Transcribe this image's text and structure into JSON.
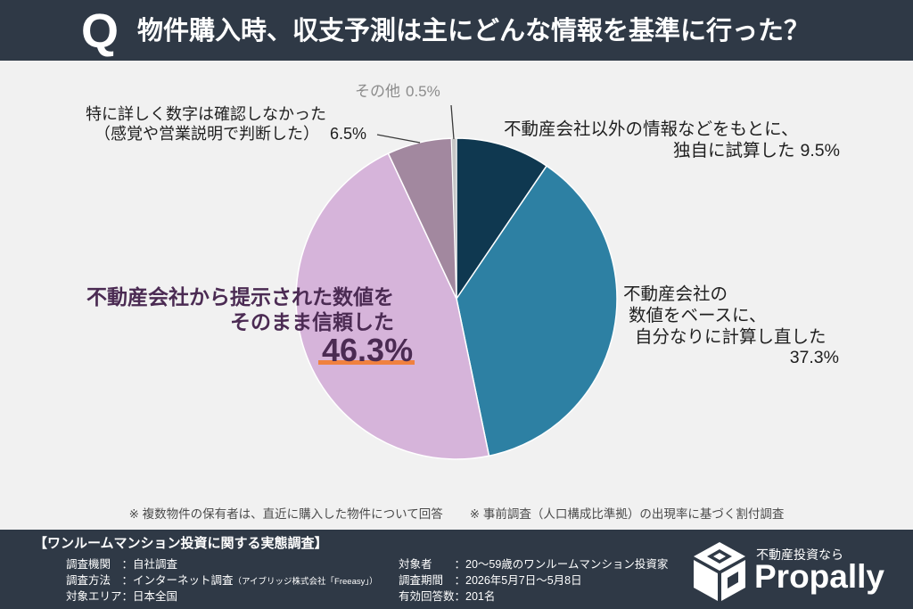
{
  "header": {
    "q_mark": "Q"
  },
  "chart_data": {
    "type": "pie",
    "title": "物件購入時、収支予測は主にどんな情報を基準に行った？",
    "values": [
      9.5,
      37.3,
      46.3,
      6.5,
      0.5
    ],
    "colors": [
      "#0f3850",
      "#2d80a3",
      "#d6b4da",
      "#a2889f",
      "#c6c6c6"
    ],
    "labels": [
      {
        "lines": [
          "不動産会社以外の情報などをもとに、",
          "独自に試算した"
        ],
        "value_text": "9.5%"
      },
      {
        "lines": [
          "不動産会社の",
          "数値をベースに、",
          "自分なりに計算し直した"
        ],
        "value_text": "37.3%"
      },
      {
        "lines": [
          "不動産会社から提示された数値を",
          "そのまま信頼した"
        ],
        "value_text": "46.3%"
      },
      {
        "lines": [
          "特に詳しく数字は確認しなかった",
          "（感覚や営業説明で判断した）"
        ],
        "value_text": "6.5%"
      },
      {
        "lines": [
          "その他"
        ],
        "value_text": "0.5%"
      }
    ]
  },
  "notes": [
    "※ 複数物件の保有者は、直近に購入した物件について回答",
    "※ 事前調査（人口構成比準拠）の出現率に基づく割付調査"
  ],
  "survey": {
    "heading": "【ワンルームマンション投資に関する実態調査】",
    "left": [
      {
        "label": "調査機関",
        "value": "：自社調査"
      },
      {
        "label": "調査方法",
        "value": "：インターネット調査",
        "note": "（アイブリッジ株式会社「Freeasy」）"
      },
      {
        "label": "対象エリア",
        "value": "：日本全国"
      }
    ],
    "right": [
      {
        "label": "対象者",
        "value": "：20～59歳のワンルームマンション投資家"
      },
      {
        "label": "調査期間",
        "value": "：2026年5月7日～5月8日"
      },
      {
        "label": "有効回答数",
        "value": "：201名"
      }
    ]
  },
  "brand": {
    "tagline": "不動産投資なら",
    "name": "Propally",
    "logo_icon": "cube-logo-icon"
  },
  "colors": {
    "band": "#2f3946",
    "background": "#f1f1f1",
    "highlight_text": "#4b2b53",
    "highlight_underline": "#f0813f",
    "muted_text": "#8c8c8c"
  }
}
